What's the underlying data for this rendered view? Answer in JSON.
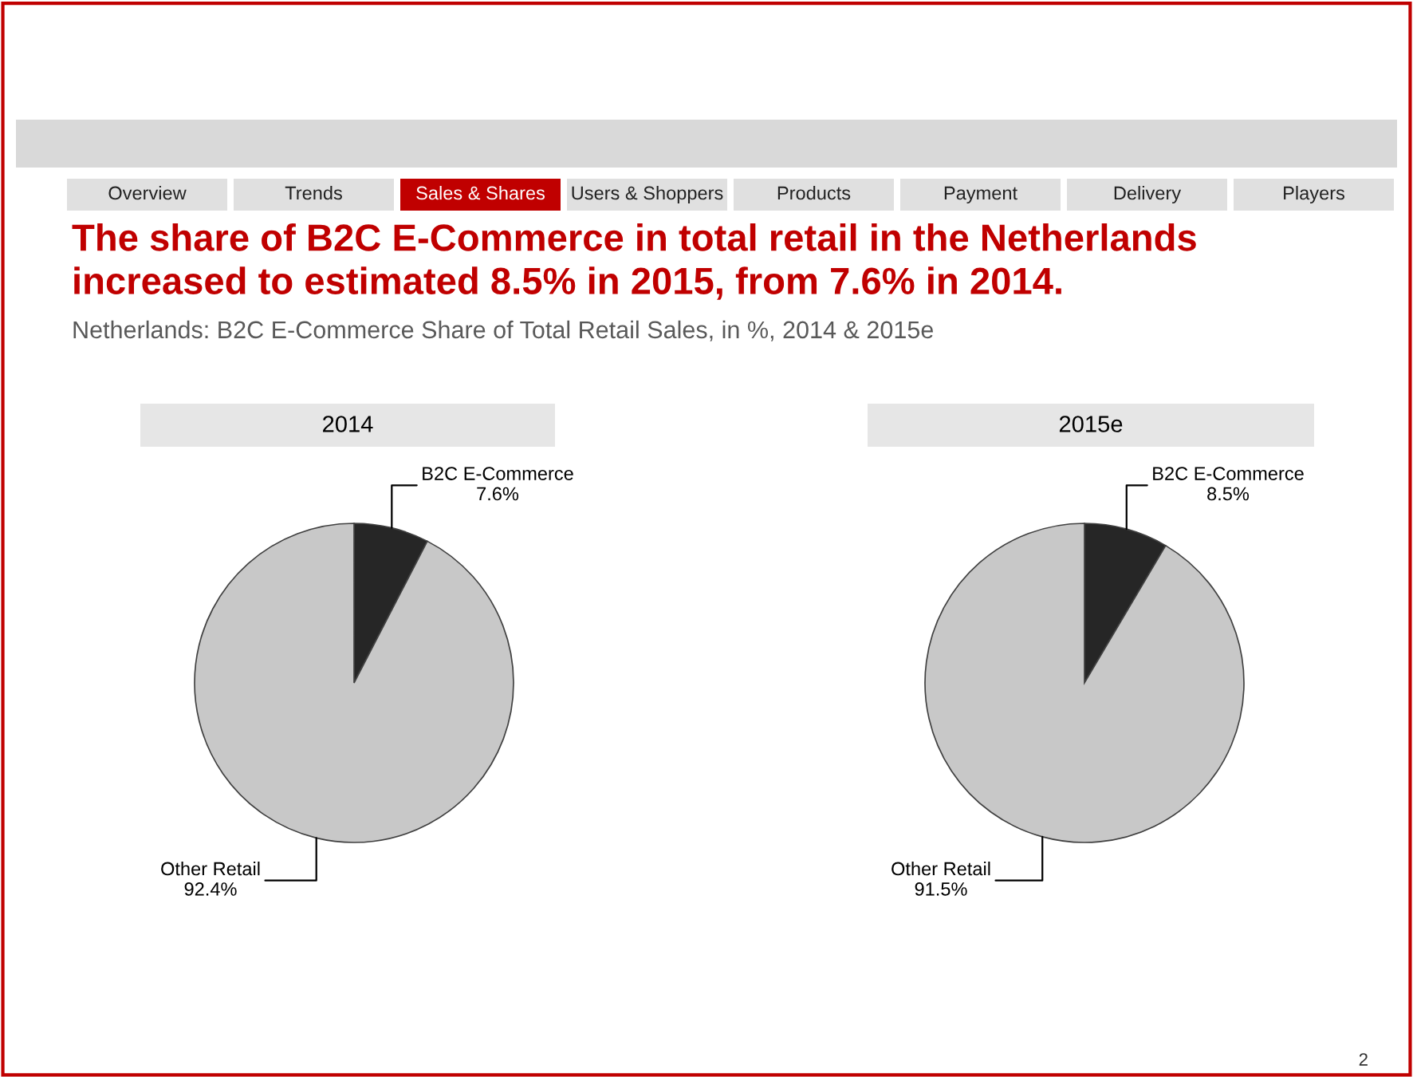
{
  "chart_data": [
    {
      "type": "pie",
      "title": "2014",
      "categories": [
        "B2C E-Commerce",
        "Other Retail"
      ],
      "values": [
        7.6,
        92.4
      ],
      "colors": [
        "#262626",
        "#c8c8c8"
      ],
      "value_labels": [
        "7.6%",
        "92.4%"
      ],
      "annotations": [
        "Overview",
        "Trends",
        "Sales & Shares",
        "Users & Shoppers",
        "Products",
        "Payment",
        "Delivery",
        "Players",
        "The share of B2C E-Commerce in total retail in the Netherlands\nincreased to estimated 8.5% in 2015, from 7.6% in 2014.",
        "Netherlands: B2C E-Commerce Share of Total Retail Sales, in %, 2014 & 2015e"
      ]
    },
    {
      "type": "pie",
      "title": "2015e",
      "categories": [
        "B2C E-Commerce",
        "Other Retail"
      ],
      "values": [
        8.5,
        91.5
      ],
      "colors": [
        "#262626",
        "#c8c8c8"
      ],
      "value_labels": [
        "8.5%",
        "91.5%"
      ],
      "annotations": [
        "2"
      ]
    }
  ]
}
